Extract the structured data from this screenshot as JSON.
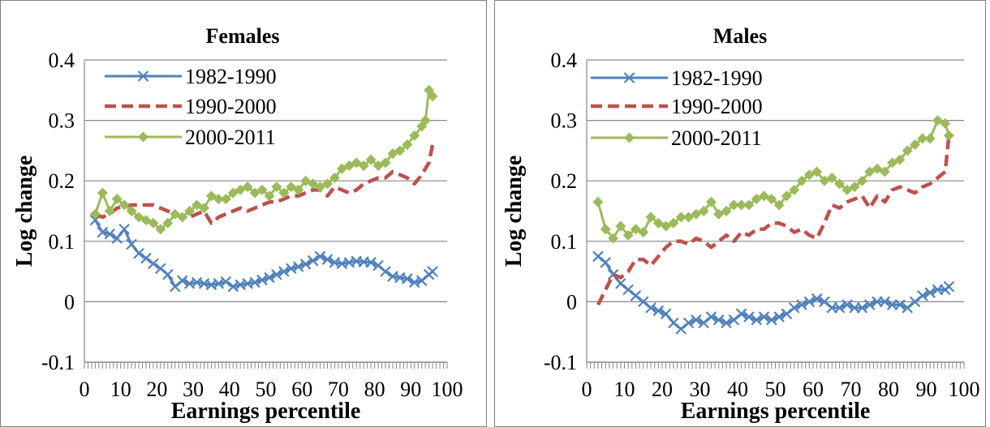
{
  "colors": {
    "s1": "#4f81bd",
    "s2": "#c0504d",
    "s3": "#9bbb59",
    "grid": "#868686",
    "axis": "#868686"
  },
  "chart_data": [
    {
      "type": "line",
      "title": "Females",
      "xlabel": "Earnings percentile",
      "ylabel": "Log change",
      "xlim": [
        0,
        100
      ],
      "ylim": [
        -0.1,
        0.4
      ],
      "xticks": [
        "0",
        "10",
        "20",
        "30",
        "40",
        "50",
        "60",
        "70",
        "80",
        "90",
        "100"
      ],
      "yticks": [
        "-0.1",
        "0",
        "0.1",
        "0.2",
        "0.3",
        "0.4"
      ],
      "grid": true,
      "legend": "top-left",
      "series": [
        {
          "name": "1982-1990",
          "style": "x-markers",
          "x": [
            3,
            5,
            7,
            9,
            11,
            13,
            15,
            17,
            19,
            21,
            23,
            25,
            27,
            29,
            31,
            33,
            35,
            37,
            39,
            41,
            43,
            45,
            47,
            49,
            51,
            53,
            55,
            57,
            59,
            61,
            63,
            65,
            67,
            69,
            71,
            73,
            75,
            77,
            79,
            81,
            83,
            85,
            87,
            89,
            91,
            93,
            95,
            96
          ],
          "y": [
            0.135,
            0.115,
            0.112,
            0.105,
            0.12,
            0.095,
            0.08,
            0.072,
            0.063,
            0.055,
            0.045,
            0.025,
            0.035,
            0.03,
            0.032,
            0.03,
            0.028,
            0.03,
            0.033,
            0.025,
            0.028,
            0.03,
            0.032,
            0.036,
            0.04,
            0.045,
            0.05,
            0.055,
            0.058,
            0.062,
            0.068,
            0.075,
            0.07,
            0.065,
            0.063,
            0.065,
            0.067,
            0.066,
            0.065,
            0.06,
            0.05,
            0.042,
            0.04,
            0.038,
            0.032,
            0.035,
            0.045,
            0.05
          ]
        },
        {
          "name": "1990-2000",
          "style": "dashed",
          "x": [
            3,
            5,
            7,
            9,
            11,
            13,
            15,
            17,
            19,
            21,
            23,
            25,
            27,
            29,
            31,
            33,
            35,
            37,
            39,
            41,
            43,
            45,
            47,
            49,
            51,
            53,
            55,
            57,
            59,
            61,
            63,
            65,
            67,
            69,
            71,
            73,
            75,
            77,
            79,
            81,
            83,
            85,
            87,
            89,
            91,
            93,
            95,
            96
          ],
          "y": [
            0.145,
            0.14,
            0.145,
            0.155,
            0.158,
            0.16,
            0.16,
            0.16,
            0.16,
            0.155,
            0.15,
            0.145,
            0.14,
            0.14,
            0.145,
            0.15,
            0.13,
            0.14,
            0.145,
            0.15,
            0.155,
            0.15,
            0.155,
            0.16,
            0.165,
            0.165,
            0.17,
            0.175,
            0.175,
            0.18,
            0.185,
            0.185,
            0.175,
            0.19,
            0.185,
            0.18,
            0.185,
            0.195,
            0.2,
            0.205,
            0.205,
            0.215,
            0.21,
            0.205,
            0.195,
            0.21,
            0.23,
            0.26
          ]
        },
        {
          "name": "2000-2011",
          "style": "diamond-markers",
          "x": [
            3,
            5,
            7,
            9,
            11,
            13,
            15,
            17,
            19,
            21,
            23,
            25,
            27,
            29,
            31,
            33,
            35,
            37,
            39,
            41,
            43,
            45,
            47,
            49,
            51,
            53,
            55,
            57,
            59,
            61,
            63,
            65,
            67,
            69,
            71,
            73,
            75,
            77,
            79,
            81,
            83,
            85,
            87,
            89,
            91,
            93,
            94,
            95,
            96
          ],
          "y": [
            0.145,
            0.18,
            0.15,
            0.17,
            0.16,
            0.15,
            0.14,
            0.135,
            0.13,
            0.12,
            0.13,
            0.145,
            0.14,
            0.15,
            0.16,
            0.155,
            0.175,
            0.17,
            0.17,
            0.18,
            0.185,
            0.19,
            0.18,
            0.185,
            0.175,
            0.19,
            0.18,
            0.19,
            0.185,
            0.2,
            0.195,
            0.19,
            0.195,
            0.205,
            0.22,
            0.225,
            0.23,
            0.225,
            0.235,
            0.225,
            0.23,
            0.245,
            0.25,
            0.26,
            0.275,
            0.29,
            0.3,
            0.35,
            0.34
          ]
        }
      ]
    },
    {
      "type": "line",
      "title": "Males",
      "xlabel": "Earnings percentile",
      "ylabel": "Log change",
      "xlim": [
        0,
        100
      ],
      "ylim": [
        -0.1,
        0.4
      ],
      "xticks": [
        "0",
        "10",
        "20",
        "30",
        "40",
        "50",
        "60",
        "70",
        "80",
        "90",
        "100"
      ],
      "yticks": [
        "-0.1",
        "0",
        "0.1",
        "0.2",
        "0.3",
        "0.4"
      ],
      "grid": true,
      "legend": "top-left",
      "series": [
        {
          "name": "1982-1990",
          "style": "x-markers",
          "x": [
            3,
            5,
            7,
            9,
            11,
            13,
            15,
            17,
            19,
            21,
            23,
            25,
            27,
            29,
            31,
            33,
            35,
            37,
            39,
            41,
            43,
            45,
            47,
            49,
            51,
            53,
            55,
            57,
            59,
            61,
            63,
            65,
            67,
            69,
            71,
            73,
            75,
            77,
            79,
            81,
            83,
            85,
            87,
            89,
            91,
            93,
            95,
            96
          ],
          "y": [
            0.075,
            0.065,
            0.045,
            0.03,
            0.02,
            0.01,
            0.0,
            -0.01,
            -0.015,
            -0.02,
            -0.035,
            -0.045,
            -0.035,
            -0.03,
            -0.035,
            -0.025,
            -0.03,
            -0.035,
            -0.03,
            -0.02,
            -0.025,
            -0.03,
            -0.025,
            -0.03,
            -0.025,
            -0.02,
            -0.01,
            -0.005,
            0.0,
            0.005,
            0.0,
            -0.01,
            -0.01,
            -0.005,
            -0.01,
            -0.01,
            -0.005,
            0.0,
            0.0,
            -0.005,
            -0.005,
            -0.01,
            0.0,
            0.01,
            0.015,
            0.02,
            0.02,
            0.025
          ]
        },
        {
          "name": "1990-2000",
          "style": "dashed",
          "x": [
            3,
            5,
            7,
            9,
            11,
            13,
            15,
            17,
            19,
            21,
            23,
            25,
            27,
            29,
            31,
            33,
            35,
            37,
            39,
            41,
            43,
            45,
            47,
            49,
            51,
            53,
            55,
            57,
            59,
            61,
            63,
            65,
            67,
            69,
            71,
            73,
            75,
            77,
            79,
            81,
            83,
            85,
            87,
            89,
            91,
            93,
            95,
            96
          ],
          "y": [
            -0.005,
            0.02,
            0.045,
            0.04,
            0.05,
            0.07,
            0.07,
            0.06,
            0.075,
            0.09,
            0.1,
            0.1,
            0.095,
            0.105,
            0.1,
            0.09,
            0.1,
            0.11,
            0.1,
            0.115,
            0.11,
            0.12,
            0.12,
            0.13,
            0.13,
            0.125,
            0.115,
            0.12,
            0.11,
            0.105,
            0.13,
            0.16,
            0.155,
            0.165,
            0.17,
            0.175,
            0.155,
            0.175,
            0.165,
            0.185,
            0.19,
            0.185,
            0.18,
            0.19,
            0.195,
            0.205,
            0.215,
            0.275
          ]
        },
        {
          "name": "2000-2011",
          "style": "diamond-markers",
          "x": [
            3,
            5,
            7,
            9,
            11,
            13,
            15,
            17,
            19,
            21,
            23,
            25,
            27,
            29,
            31,
            33,
            35,
            37,
            39,
            41,
            43,
            45,
            47,
            49,
            51,
            53,
            55,
            57,
            59,
            61,
            63,
            65,
            67,
            69,
            71,
            73,
            75,
            77,
            79,
            81,
            83,
            85,
            87,
            89,
            91,
            93,
            95,
            96
          ],
          "y": [
            0.165,
            0.12,
            0.105,
            0.125,
            0.11,
            0.12,
            0.115,
            0.14,
            0.13,
            0.125,
            0.13,
            0.14,
            0.14,
            0.145,
            0.15,
            0.165,
            0.145,
            0.15,
            0.16,
            0.16,
            0.16,
            0.17,
            0.175,
            0.17,
            0.16,
            0.175,
            0.185,
            0.2,
            0.21,
            0.215,
            0.2,
            0.205,
            0.195,
            0.185,
            0.19,
            0.2,
            0.215,
            0.22,
            0.215,
            0.23,
            0.235,
            0.25,
            0.26,
            0.27,
            0.27,
            0.3,
            0.295,
            0.275
          ]
        }
      ]
    }
  ]
}
